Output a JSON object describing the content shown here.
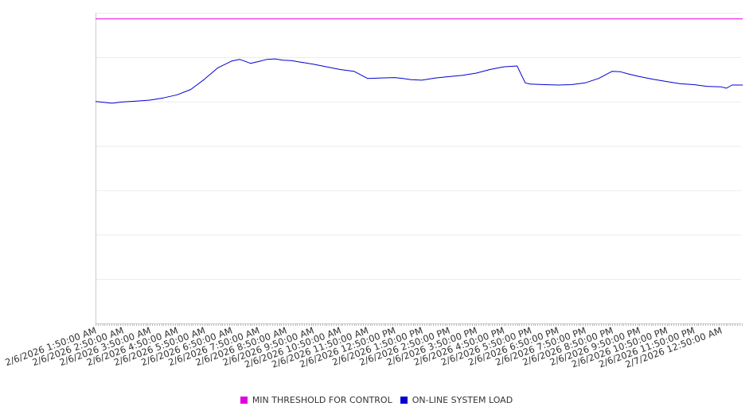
{
  "chart_data": {
    "type": "line",
    "grid": true,
    "legend_position": "bottom",
    "ylim": [
      0,
      7
    ],
    "categories": [
      "2/6/2026 1:50:00 AM",
      "2/6/2026 2:50:00 AM",
      "2/6/2026 3:50:00 AM",
      "2/6/2026 4:50:00 AM",
      "2/6/2026 5:50:00 AM",
      "2/6/2026 6:50:00 AM",
      "2/6/2026 7:50:00 AM",
      "2/6/2026 8:50:00 AM",
      "2/6/2026 9:50:00 AM",
      "2/6/2026 10:50:00 AM",
      "2/6/2026 11:50:00 AM",
      "2/6/2026 12:50:00 PM",
      "2/6/2026 1:50:00 PM",
      "2/6/2026 2:50:00 PM",
      "2/6/2026 3:50:00 PM",
      "2/6/2026 4:50:00 PM",
      "2/6/2026 5:50:00 PM",
      "2/6/2026 6:50:00 PM",
      "2/6/2026 7:50:00 PM",
      "2/6/2026 8:50:00 PM",
      "2/6/2026 9:50:00 PM",
      "2/6/2026 10:50:00 PM",
      "2/6/2026 11:50:00 PM",
      "2/7/2026 12:50:00 AM"
    ],
    "series": [
      {
        "name": "MIN THRESHOLD FOR CONTROL",
        "color": "#e000e0",
        "x": [
          0,
          23.8
        ],
        "values": [
          6.86,
          6.86
        ]
      },
      {
        "name": "ON-LINE SYSTEM LOAD",
        "color": "#0000d0",
        "x": [
          0,
          0.3,
          0.6,
          1.0,
          1.5,
          2.0,
          2.5,
          3.0,
          3.5,
          4.0,
          4.5,
          5.0,
          5.3,
          5.7,
          6.0,
          6.3,
          6.6,
          6.9,
          7.2,
          7.5,
          8.0,
          8.5,
          9.0,
          9.5,
          10.0,
          10.5,
          11.0,
          11.3,
          11.6,
          12.0,
          12.5,
          13.0,
          13.5,
          14.0,
          14.5,
          15.0,
          15.5,
          15.8,
          16.0,
          16.05,
          16.5,
          17.0,
          17.5,
          18.0,
          18.5,
          19.0,
          19.3,
          19.6,
          20.0,
          20.5,
          21.0,
          21.5,
          22.0,
          22.5,
          23.0,
          23.2,
          23.4,
          23.8
        ],
        "values": [
          5.0,
          4.98,
          4.96,
          4.99,
          5.01,
          5.03,
          5.08,
          5.15,
          5.27,
          5.5,
          5.76,
          5.91,
          5.95,
          5.86,
          5.9,
          5.95,
          5.96,
          5.93,
          5.92,
          5.89,
          5.84,
          5.78,
          5.72,
          5.68,
          5.52,
          5.53,
          5.54,
          5.52,
          5.49,
          5.48,
          5.53,
          5.56,
          5.59,
          5.64,
          5.72,
          5.78,
          5.8,
          5.42,
          5.39,
          5.39,
          5.38,
          5.37,
          5.38,
          5.42,
          5.52,
          5.68,
          5.67,
          5.62,
          5.56,
          5.5,
          5.45,
          5.4,
          5.38,
          5.34,
          5.33,
          5.3,
          5.37,
          5.37
        ]
      }
    ]
  }
}
